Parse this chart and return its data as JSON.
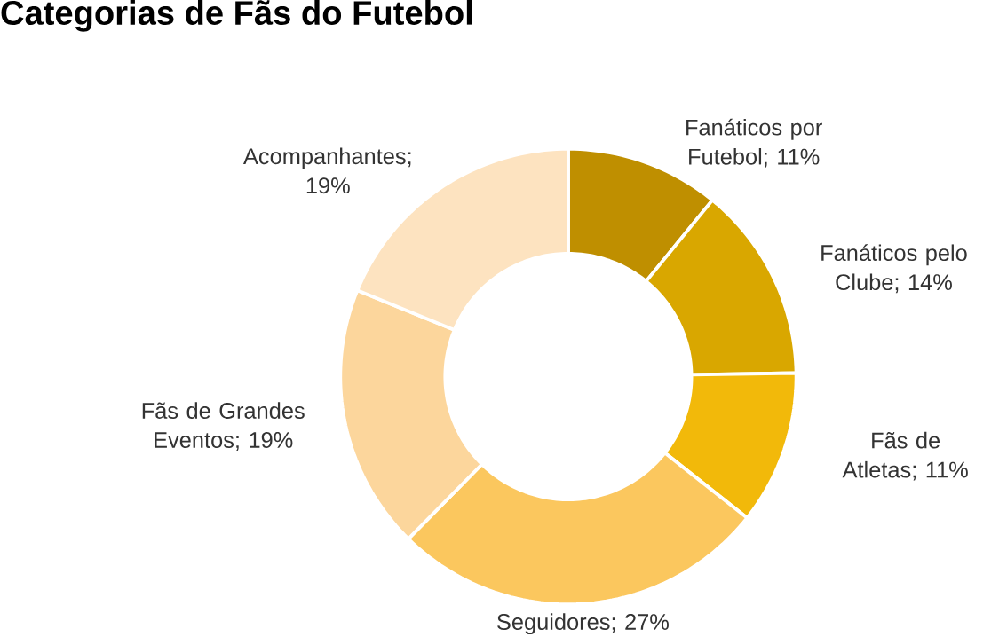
{
  "chart_data": {
    "type": "donut",
    "title": "Categorias de Fãs do Futebol",
    "categories": [
      "Fanáticos por Futebol",
      "Fanáticos pelo Clube",
      "Fãs de Atletas",
      "Seguidores",
      "Fãs de Grandes Eventos",
      "Acompanhantes"
    ],
    "values": [
      11,
      14,
      11,
      27,
      19,
      19
    ],
    "value_labels": [
      "; 11%",
      "; 14%",
      "; 11%",
      "; 27%",
      "; 19%",
      "; 19%"
    ],
    "colors": [
      "#bf8f00",
      "#d9a700",
      "#f2b90a",
      "#fbc75e",
      "#fcd69c",
      "#fde3c0"
    ]
  }
}
